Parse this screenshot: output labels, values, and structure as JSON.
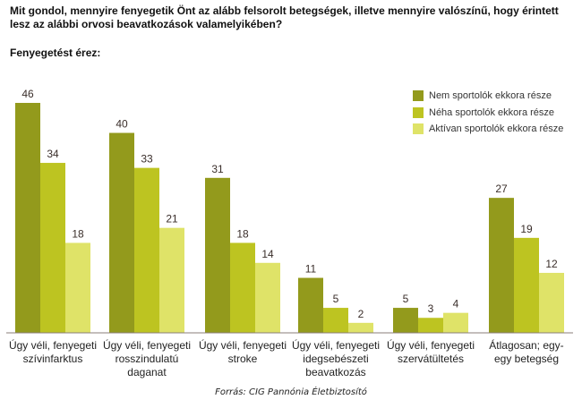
{
  "header": {
    "question": "Mit gondol, mennyire fenyegetik Önt az alább felsorolt betegségek, illetve mennyire valószínű, hogy érintett lesz az alábbi orvosi beavatkozások valamelyikében?",
    "subtitle": "Fenyegetést érez:"
  },
  "footer": {
    "source": "Forrás: CIG Pannónia Életbiztosító"
  },
  "chart_data": {
    "type": "bar",
    "title": "Fenyegetést érez:",
    "xlabel": "",
    "ylabel": "",
    "ylim": [
      0,
      46
    ],
    "grid": false,
    "legend_position": "top-right",
    "categories": [
      [
        "Úgy véli, fenyegeti",
        "szívinfarktus"
      ],
      [
        "Úgy véli, fenyegeti",
        "rosszindulatú",
        "daganat"
      ],
      [
        "Úgy véli, fenyegeti",
        "stroke"
      ],
      [
        "Úgy véli, fenyegeti",
        "idegsebészeti",
        "beavatkozás"
      ],
      [
        "Úgy véli, fenyegeti",
        "szervátültetés"
      ],
      [
        "Átlagosan; egy-",
        "egy betegség"
      ]
    ],
    "series": [
      {
        "name": "Nem sportolók ekkora része",
        "color": "#939a1c",
        "values": [
          46,
          40,
          31,
          11,
          5,
          27
        ]
      },
      {
        "name": "Néha sportolók ekkora része",
        "color": "#bdc421",
        "values": [
          34,
          33,
          18,
          5,
          3,
          19
        ]
      },
      {
        "name": "Aktívan sportolók ekkora része",
        "color": "#dfe368",
        "values": [
          18,
          21,
          14,
          2,
          4,
          12
        ]
      }
    ]
  }
}
